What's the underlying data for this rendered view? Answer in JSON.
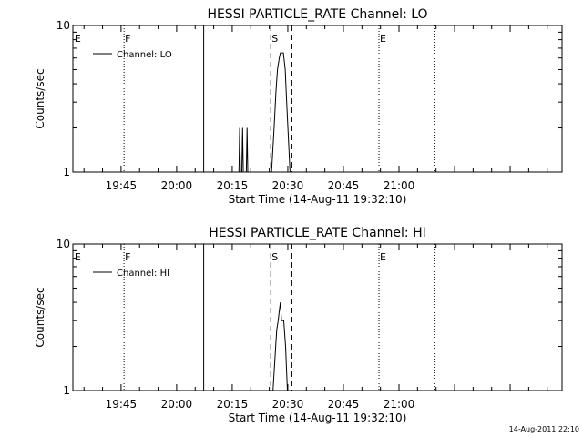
{
  "footer_stamp": "14-Aug-2011 22:10",
  "chart_data": [
    {
      "type": "line",
      "title": "HESSI PARTICLE_RATE Channel: LO",
      "xlabel": "Start Time (14-Aug-11 19:32:10)",
      "ylabel": "Counts/sec",
      "x_unit": "minutes of day",
      "xlim": [
        1172,
        1304
      ],
      "ylim": [
        1,
        10
      ],
      "yscale": "log",
      "x_ticks": [
        {
          "label": "19:45",
          "value": 1185
        },
        {
          "label": "20:00",
          "value": 1200
        },
        {
          "label": "20:15",
          "value": 1215
        },
        {
          "label": "20:30",
          "value": 1230
        },
        {
          "label": "20:45",
          "value": 1245
        },
        {
          "label": "21:00",
          "value": 1260
        }
      ],
      "y_ticks": [
        {
          "label": "1",
          "value": 1
        },
        {
          "label": "10",
          "value": 10
        }
      ],
      "series": [
        {
          "name": "Channel: LO",
          "points": [
            [
              1216.8,
              1
            ],
            [
              1217.0,
              2
            ],
            [
              1217.2,
              1
            ],
            [
              1217.6,
              1
            ],
            [
              1217.8,
              2
            ],
            [
              1218.0,
              1
            ],
            [
              1218.8,
              1
            ],
            [
              1219.0,
              2
            ],
            [
              1219.2,
              1
            ],
            [
              1225.6,
              1
            ],
            [
              1226.3,
              2.0
            ],
            [
              1226.8,
              3.5
            ],
            [
              1227.2,
              5.0
            ],
            [
              1227.7,
              6.0
            ],
            [
              1228.0,
              6.5
            ],
            [
              1228.8,
              6.5
            ],
            [
              1229.3,
              5.0
            ],
            [
              1229.7,
              3.0
            ],
            [
              1230.2,
              1.6
            ],
            [
              1230.6,
              1
            ]
          ]
        }
      ],
      "flags": [
        {
          "label": "E",
          "x": 1172.2
        },
        {
          "label": "F",
          "x": 1185.8
        },
        {
          "label": "S",
          "x": 1225.4
        },
        {
          "label": "E",
          "x": 1254.6
        }
      ],
      "markers": [
        {
          "x": 1185.8,
          "style": "dotted"
        },
        {
          "x": 1207.3,
          "style": "solid"
        },
        {
          "x": 1225.4,
          "style": "dashed"
        },
        {
          "x": 1231.1,
          "style": "dashed"
        },
        {
          "x": 1254.6,
          "style": "dotted"
        },
        {
          "x": 1269.5,
          "style": "dotted"
        }
      ],
      "legend": "upper left"
    },
    {
      "type": "line",
      "title": "HESSI PARTICLE_RATE Channel: HI",
      "xlabel": "Start Time (14-Aug-11 19:32:10)",
      "ylabel": "Counts/sec",
      "x_unit": "minutes of day",
      "xlim": [
        1172,
        1304
      ],
      "ylim": [
        1,
        10
      ],
      "yscale": "log",
      "x_ticks": [
        {
          "label": "19:45",
          "value": 1185
        },
        {
          "label": "20:00",
          "value": 1200
        },
        {
          "label": "20:15",
          "value": 1215
        },
        {
          "label": "20:30",
          "value": 1230
        },
        {
          "label": "20:45",
          "value": 1245
        },
        {
          "label": "21:00",
          "value": 1260
        }
      ],
      "y_ticks": [
        {
          "label": "1",
          "value": 1
        },
        {
          "label": "10",
          "value": 10
        }
      ],
      "series": [
        {
          "name": "Channel: HI",
          "points": [
            [
              1226.0,
              1
            ],
            [
              1226.5,
              1.6
            ],
            [
              1227.0,
              2.6
            ],
            [
              1227.4,
              3.0
            ],
            [
              1227.7,
              3.5
            ],
            [
              1228.0,
              4.0
            ],
            [
              1228.3,
              3.0
            ],
            [
              1228.9,
              3.0
            ],
            [
              1229.4,
              2.0
            ],
            [
              1229.9,
              1
            ]
          ]
        }
      ],
      "flags": [
        {
          "label": "E",
          "x": 1172.2
        },
        {
          "label": "F",
          "x": 1185.8
        },
        {
          "label": "S",
          "x": 1225.4
        },
        {
          "label": "E",
          "x": 1254.6
        }
      ],
      "markers": [
        {
          "x": 1185.8,
          "style": "dotted"
        },
        {
          "x": 1207.3,
          "style": "solid"
        },
        {
          "x": 1225.4,
          "style": "dashed"
        },
        {
          "x": 1231.1,
          "style": "dashed"
        },
        {
          "x": 1254.6,
          "style": "dotted"
        },
        {
          "x": 1269.5,
          "style": "dotted"
        }
      ],
      "legend": "upper left"
    }
  ]
}
